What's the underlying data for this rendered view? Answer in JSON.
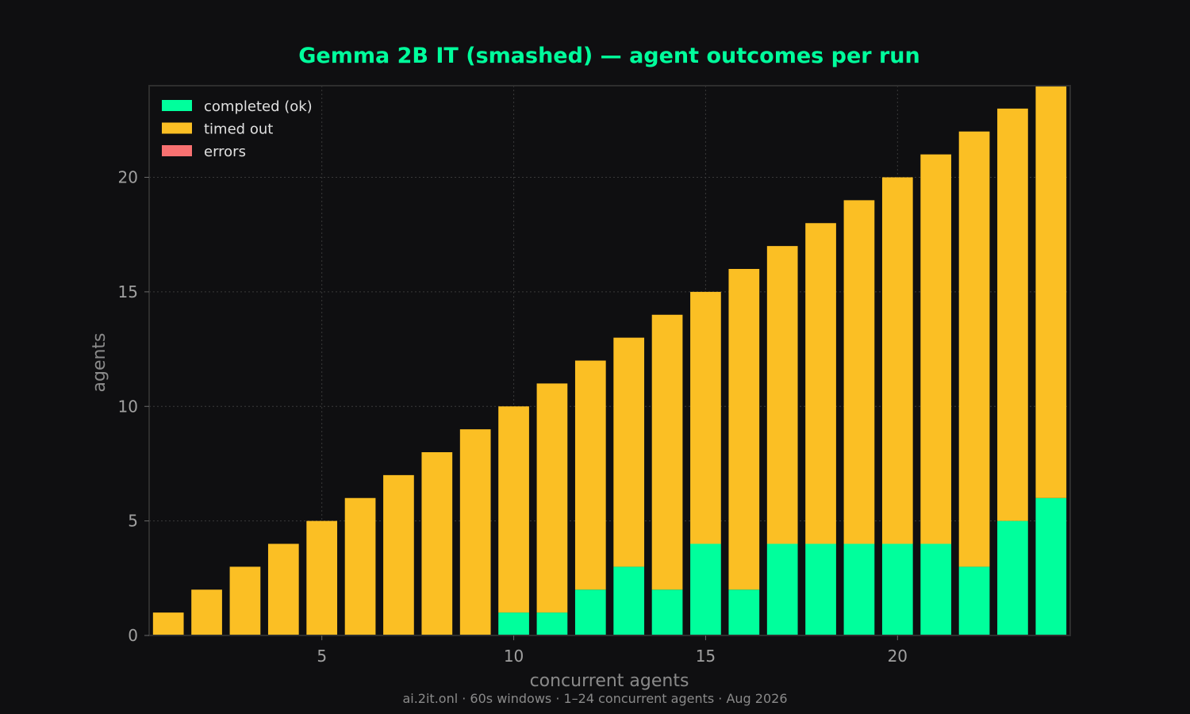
{
  "chart_data": {
    "type": "bar",
    "stacked": true,
    "title": "Gemma 2B IT (smashed) — agent outcomes per run",
    "xlabel": "concurrent agents",
    "ylabel": "agents",
    "x": [
      1,
      2,
      3,
      4,
      5,
      6,
      7,
      8,
      9,
      10,
      11,
      12,
      13,
      14,
      15,
      16,
      17,
      18,
      19,
      20,
      21,
      22,
      23,
      24
    ],
    "xticks": [
      5,
      10,
      15,
      20
    ],
    "yticks": [
      0,
      5,
      10,
      15,
      20
    ],
    "xlim": [
      0.5,
      24.5
    ],
    "ylim": [
      0,
      24
    ],
    "grid": true,
    "legend_position": "top-left",
    "series": [
      {
        "name": "completed (ok)",
        "color": "#00ff9c",
        "values": [
          0,
          0,
          0,
          0,
          0,
          0,
          0,
          0,
          0,
          1,
          1,
          2,
          3,
          2,
          4,
          2,
          4,
          4,
          4,
          4,
          4,
          3,
          5,
          6
        ]
      },
      {
        "name": "timed out",
        "color": "#fbbf24",
        "values": [
          1,
          2,
          3,
          4,
          5,
          6,
          7,
          8,
          9,
          9,
          10,
          10,
          10,
          12,
          11,
          14,
          13,
          14,
          15,
          16,
          17,
          19,
          18,
          18
        ]
      },
      {
        "name": "errors",
        "color": "#f87171",
        "values": [
          0,
          0,
          0,
          0,
          0,
          0,
          0,
          0,
          0,
          0,
          0,
          0,
          0,
          0,
          0,
          0,
          0,
          0,
          0,
          0,
          0,
          0,
          0,
          0
        ]
      }
    ],
    "footer": "ai.2it.onl · 60s windows · 1–24 concurrent agents · Aug 2026"
  },
  "colors": {
    "background": "#0f0f11",
    "plot_background": "#0f0f11",
    "frame": "#2e2e2e",
    "title": "#00ff9c"
  }
}
